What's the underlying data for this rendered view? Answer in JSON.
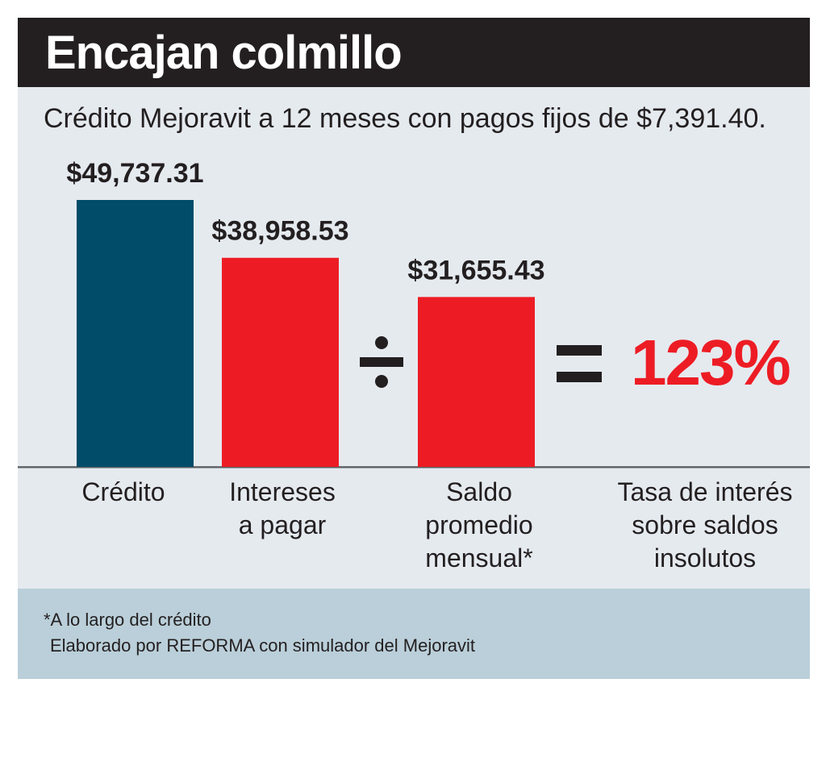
{
  "chart_data": {
    "type": "bar",
    "title": "Encajan colmillo",
    "subtitle": "Crédito Mejoravit a 12 meses con pagos fijos de $7,391.40.",
    "categories": [
      "Crédito",
      "Intereses a pagar",
      "Saldo promedio mensual*"
    ],
    "values": [
      49737.31,
      38958.53,
      31655.43
    ],
    "value_labels": [
      "$49,737.31",
      "$38,958.53",
      "$31,655.43"
    ],
    "colors": [
      "#004c69",
      "#ed1c24",
      "#ed1c24"
    ],
    "operators": {
      "divide": "÷",
      "equals": "="
    },
    "result": {
      "value": "123%",
      "label": "Tasa de interés sobre saldos insolutos",
      "color": "#ed1c24"
    },
    "ylim": [
      0,
      52000
    ]
  },
  "labels": {
    "cat0": [
      "Crédito"
    ],
    "cat1": [
      "Intereses",
      "a pagar"
    ],
    "cat2": [
      "Saldo",
      "promedio",
      "mensual*"
    ],
    "result": [
      "Tasa de interés",
      "sobre saldos",
      "insolutos"
    ]
  },
  "footer": {
    "note": "*A lo largo del crédito",
    "source": "Elaborado por REFORMA con simulador del Mejoravit"
  }
}
